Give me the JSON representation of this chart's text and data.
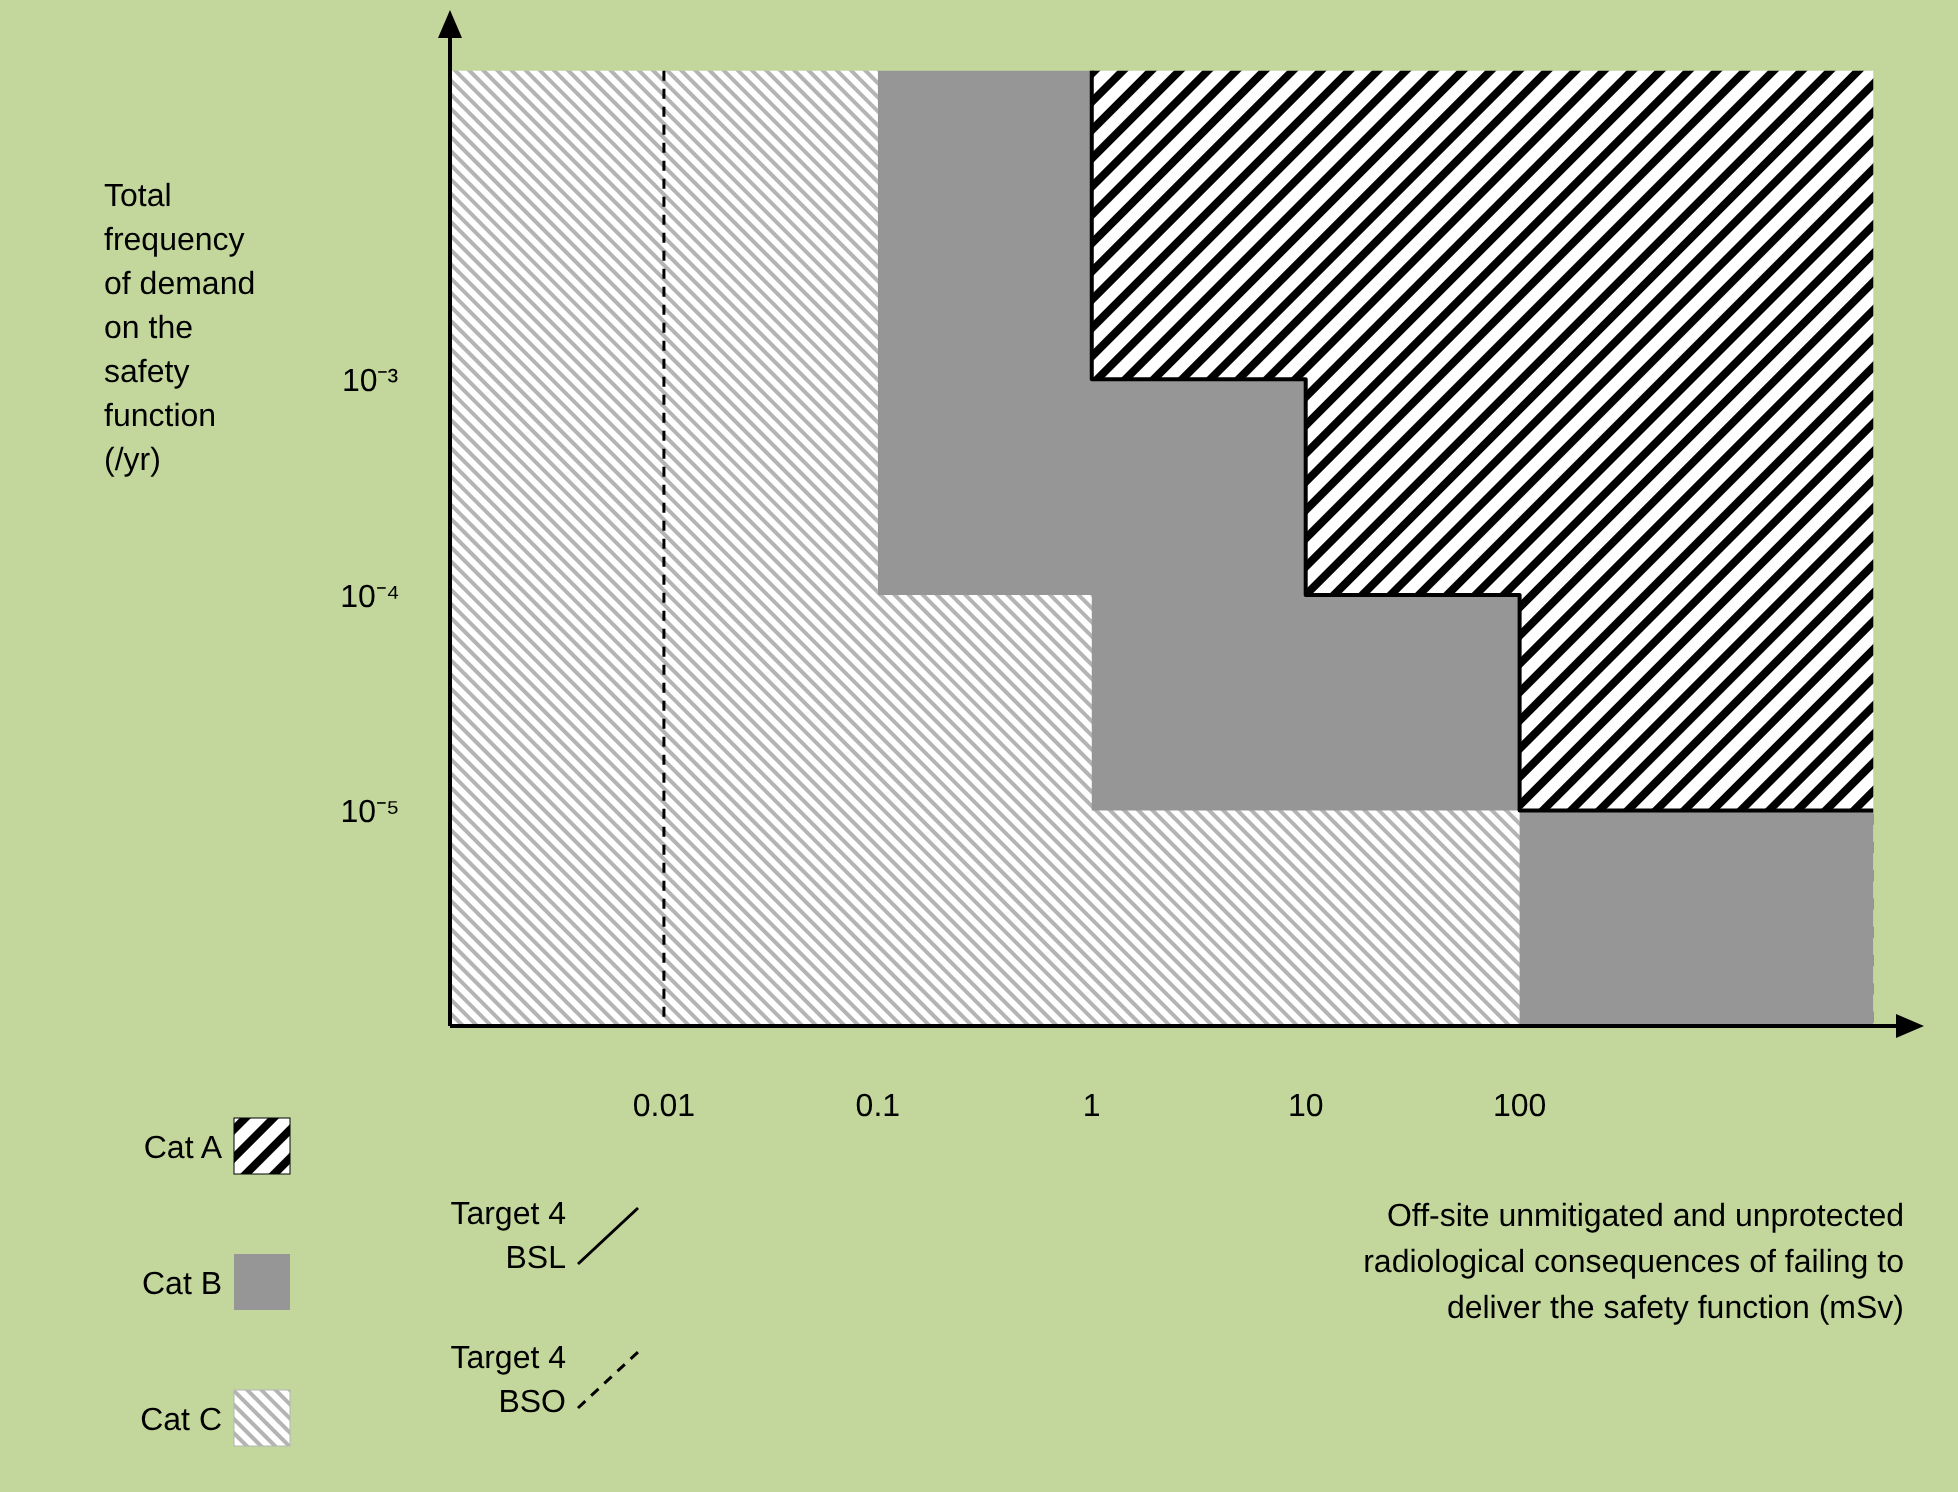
{
  "chart_data": {
    "type": "area",
    "log": "xy",
    "xlabel": "Off-site unmitigated and unprotected radiological consequences of failing to deliver the safety function (mSv)",
    "ylabel": "Total frequency of demand on the safety function (/yr)",
    "xlim": [
      0.001,
      6000
    ],
    "ylim": [
      1e-06,
      0.04
    ],
    "xticks": [
      0.01,
      0.1,
      1,
      10,
      100
    ],
    "yticks": [
      {
        "value": 0.001,
        "label": "10⁻³"
      },
      {
        "value": 0.0001,
        "label": "10⁻⁴"
      },
      {
        "value": 1e-05,
        "label": "10⁻⁵"
      }
    ],
    "grid": false,
    "legend": "bottom left",
    "series": [
      {
        "name": "Cat A",
        "color": "#000000",
        "x": [
          1,
          10,
          100,
          4500
        ],
        "values": [
          0.027,
          0.027,
          0.027,
          0.027
        ]
      },
      {
        "name": "Cat B",
        "color": "#969696",
        "x": [
          0.1,
          1,
          10,
          100,
          4500
        ],
        "values": [
          0.027,
          0.001,
          0.0001,
          1e-05,
          1e-05
        ]
      },
      {
        "name": "Cat C",
        "color": "#b4b4b4",
        "x": [
          0.001,
          0.1,
          1,
          10,
          100
        ],
        "values": [
          0.027,
          0.0001,
          1e-05,
          1e-05,
          1e-05
        ]
      },
      {
        "name": "Target 4 BSL",
        "type": "step",
        "color": "#000000",
        "line_style": "solid",
        "x": [
          1,
          1,
          10,
          100,
          4500
        ],
        "values": [
          0.027,
          0.001,
          0.0001,
          1e-05,
          1e-05
        ]
      }
    ],
    "ref_lines": [
      {
        "axis": "x",
        "value": 0.01,
        "label": "Target 4 BSO",
        "color": "#000000",
        "line_style": "dashed"
      }
    ]
  }
}
